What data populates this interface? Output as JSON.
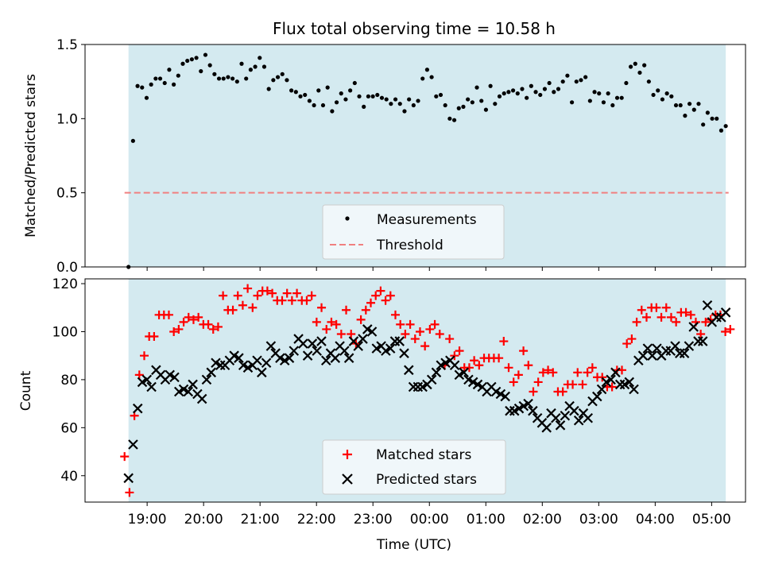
{
  "chart_data": [
    {
      "type": "scatter",
      "title": "Flux total observing time = 10.58 h",
      "ylabel": "Matched/Predicted stars",
      "xlabel": "",
      "xlim_hours": [
        17.9,
        29.6
      ],
      "ylim": [
        0,
        1.5
      ],
      "yticks": [
        "0.0",
        "0.5",
        "1.0",
        "1.5"
      ],
      "shaded_span_hours": [
        18.67,
        29.25
      ],
      "shade_color": "#d4eaf0",
      "threshold": {
        "value": 0.5,
        "color": "#f08080",
        "style": "dashed"
      },
      "legend": {
        "placement": "lower-center",
        "entries": [
          "Measurements",
          "Threshold"
        ]
      },
      "series": [
        {
          "name": "Measurements",
          "color": "#000000",
          "x_start_hours": 18.67,
          "x_end_hours": 29.25,
          "values": [
            0.0,
            0.85,
            1.22,
            1.21,
            1.14,
            1.23,
            1.27,
            1.27,
            1.24,
            1.33,
            1.23,
            1.29,
            1.37,
            1.39,
            1.4,
            1.41,
            1.32,
            1.43,
            1.36,
            1.3,
            1.27,
            1.27,
            1.28,
            1.27,
            1.25,
            1.37,
            1.27,
            1.33,
            1.35,
            1.41,
            1.35,
            1.2,
            1.26,
            1.28,
            1.3,
            1.26,
            1.19,
            1.18,
            1.15,
            1.16,
            1.12,
            1.09,
            1.19,
            1.09,
            1.21,
            1.05,
            1.11,
            1.17,
            1.13,
            1.19,
            1.24,
            1.15,
            1.08,
            1.15,
            1.15,
            1.16,
            1.14,
            1.13,
            1.1,
            1.13,
            1.1,
            1.05,
            1.13,
            1.09,
            1.12,
            1.27,
            1.33,
            1.28,
            1.15,
            1.16,
            1.09,
            1.0,
            0.99,
            1.07,
            1.08,
            1.13,
            1.11,
            1.21,
            1.12,
            1.06,
            1.22,
            1.1,
            1.15,
            1.17,
            1.18,
            1.19,
            1.17,
            1.2,
            1.14,
            1.22,
            1.18,
            1.16,
            1.2,
            1.24,
            1.18,
            1.2,
            1.25,
            1.29,
            1.11,
            1.25,
            1.26,
            1.28,
            1.12,
            1.18,
            1.17,
            1.11,
            1.17,
            1.09,
            1.14,
            1.14,
            1.24,
            1.35,
            1.37,
            1.31,
            1.36,
            1.25,
            1.16,
            1.19,
            1.13,
            1.17,
            1.15,
            1.09,
            1.09,
            1.02,
            1.1,
            1.06,
            1.1,
            0.96,
            1.04,
            1.0,
            1.0,
            0.92,
            0.95
          ]
        }
      ]
    },
    {
      "type": "scatter",
      "title": "",
      "ylabel": "Count",
      "xlabel": "Time (UTC)",
      "xlim_hours": [
        17.9,
        29.6
      ],
      "ylim": [
        29,
        122
      ],
      "yticks": [
        "40",
        "60",
        "80",
        "100",
        "120"
      ],
      "xticks": [
        {
          "hour": 19,
          "label": "19:00"
        },
        {
          "hour": 20,
          "label": "20:00"
        },
        {
          "hour": 21,
          "label": "21:00"
        },
        {
          "hour": 22,
          "label": "22:00"
        },
        {
          "hour": 23,
          "label": "23:00"
        },
        {
          "hour": 24,
          "label": "00:00"
        },
        {
          "hour": 25,
          "label": "01:00"
        },
        {
          "hour": 26,
          "label": "02:00"
        },
        {
          "hour": 27,
          "label": "03:00"
        },
        {
          "hour": 28,
          "label": "04:00"
        },
        {
          "hour": 29,
          "label": "05:00"
        }
      ],
      "shaded_span_hours": [
        18.67,
        29.25
      ],
      "legend": {
        "placement": "lower-center",
        "entries": [
          "Matched stars",
          "Predicted stars"
        ]
      },
      "series": [
        {
          "name": "Matched stars",
          "marker": "plus",
          "color": "#ff0000",
          "x_start_hours": 18.6,
          "x_end_hours": 29.33,
          "values": [
            48,
            33,
            65,
            82,
            90,
            98,
            98,
            107,
            107,
            107,
            100,
            101,
            104,
            106,
            105,
            106,
            103,
            103,
            101,
            102,
            115,
            109,
            109,
            115,
            111,
            118,
            110,
            115,
            117,
            117,
            116,
            113,
            113,
            116,
            113,
            116,
            113,
            113,
            115,
            104,
            110,
            101,
            104,
            103,
            99,
            109,
            99,
            95,
            105,
            109,
            112,
            115,
            117,
            113,
            115,
            107,
            103,
            99,
            103,
            97,
            100,
            94,
            101,
            103,
            99,
            86,
            97,
            90,
            92,
            85,
            85,
            88,
            86,
            89,
            89,
            89,
            89,
            96,
            85,
            79,
            82,
            92,
            86,
            75,
            79,
            83,
            84,
            83,
            75,
            75,
            78,
            78,
            83,
            78,
            83,
            85,
            81,
            81,
            77,
            77,
            84,
            84,
            95,
            97,
            104,
            109,
            106,
            110,
            110,
            106,
            110,
            106,
            104,
            108,
            108,
            107,
            104,
            99,
            104,
            105,
            107,
            107,
            100,
            101
          ]
        },
        {
          "name": "Predicted stars",
          "marker": "x",
          "color": "#000000",
          "x_start_hours": 18.67,
          "x_end_hours": 29.25,
          "values": [
            39,
            53,
            68,
            79,
            80,
            77,
            84,
            82,
            80,
            82,
            81,
            75,
            76,
            75,
            78,
            74,
            72,
            80,
            83,
            87,
            86,
            86,
            88,
            90,
            89,
            86,
            85,
            86,
            88,
            83,
            87,
            94,
            91,
            89,
            88,
            89,
            92,
            97,
            95,
            90,
            95,
            92,
            96,
            88,
            91,
            89,
            94,
            92,
            89,
            96,
            94,
            97,
            101,
            100,
            93,
            94,
            92,
            93,
            96,
            96,
            91,
            84,
            77,
            77,
            77,
            78,
            80,
            83,
            86,
            87,
            88,
            86,
            82,
            83,
            80,
            79,
            78,
            77,
            75,
            77,
            75,
            74,
            73,
            67,
            67,
            68,
            69,
            70,
            67,
            64,
            62,
            60,
            66,
            64,
            61,
            65,
            69,
            67,
            63,
            66,
            64,
            71,
            73,
            76,
            79,
            80,
            83,
            78,
            78,
            79,
            76,
            88,
            90,
            93,
            90,
            93,
            90,
            92,
            92,
            94,
            91,
            91,
            94,
            102,
            96,
            96,
            111,
            104,
            106,
            106,
            108
          ]
        }
      ]
    }
  ]
}
